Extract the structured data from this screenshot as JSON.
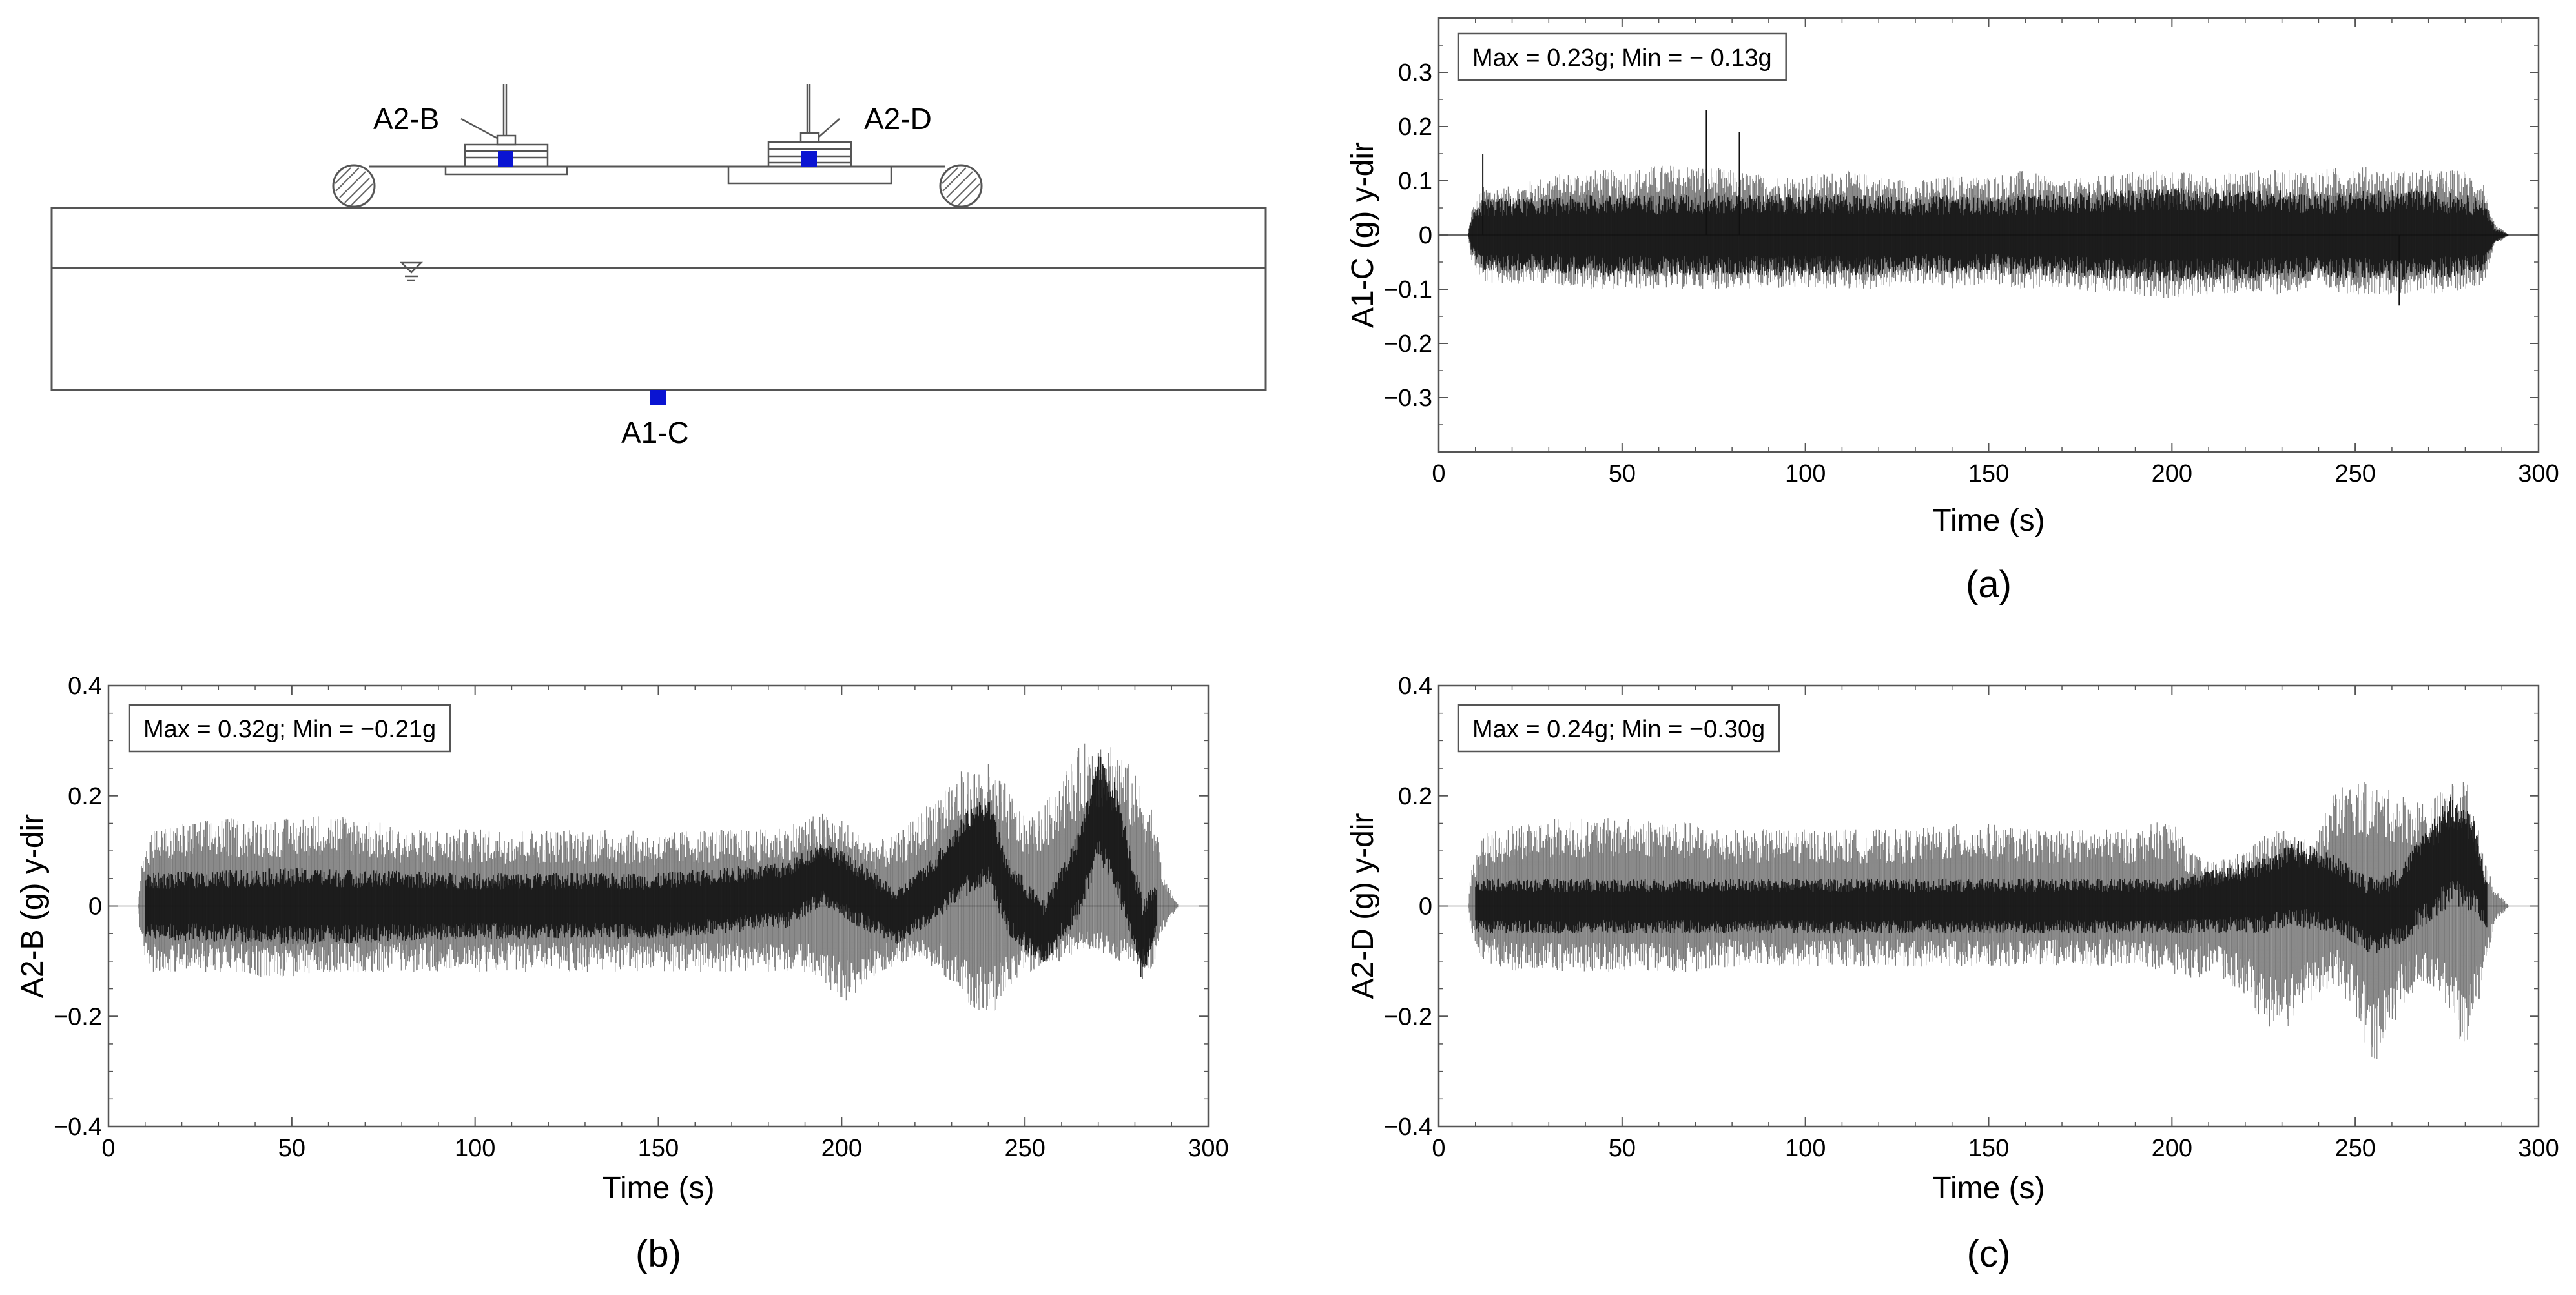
{
  "diagram": {
    "sensor_labels": [
      "A2-B",
      "A2-D",
      "A1-C"
    ],
    "sensor_color": "#0a14d2",
    "line_color": "#555555"
  },
  "chart_data": [
    {
      "type": "line",
      "panel_label": "(a)",
      "annotation": "Max = 0.23g; Min = − 0.13g",
      "max": 0.23,
      "min": -0.13,
      "xlabel": "Time (s)",
      "ylabel": "A1-C (g) y-dir",
      "xlim": [
        0,
        300
      ],
      "ylim": [
        -0.4,
        0.4
      ],
      "xticks": [
        0,
        50,
        100,
        150,
        200,
        250,
        300
      ],
      "xtick_labels": [
        "0",
        "50",
        "100",
        "150",
        "200",
        "250",
        "300"
      ],
      "yticks": [
        -0.3,
        -0.2,
        -0.1,
        0,
        0.1,
        0.2,
        0.3
      ],
      "ytick_labels": [
        "−0.3",
        "−0.2",
        "−0.1",
        "0",
        "0.1",
        "0.2",
        "0.3"
      ],
      "grid": false,
      "line_color": "#111111",
      "envelope": {
        "x": [
          0,
          8,
          9,
          12,
          20,
          30,
          40,
          50,
          60,
          70,
          80,
          90,
          100,
          110,
          120,
          130,
          140,
          150,
          160,
          170,
          180,
          190,
          200,
          210,
          220,
          230,
          240,
          250,
          260,
          270,
          280,
          285,
          288,
          292,
          300
        ],
        "upper": [
          0,
          0,
          0.05,
          0.09,
          0.09,
          0.11,
          0.12,
          0.12,
          0.13,
          0.13,
          0.12,
          0.11,
          0.11,
          0.12,
          0.11,
          0.1,
          0.11,
          0.11,
          0.12,
          0.1,
          0.11,
          0.12,
          0.12,
          0.11,
          0.12,
          0.12,
          0.12,
          0.13,
          0.12,
          0.12,
          0.12,
          0.1,
          0.02,
          0,
          0
        ],
        "lower": [
          0,
          0,
          -0.05,
          -0.09,
          -0.09,
          -0.09,
          -0.1,
          -0.1,
          -0.1,
          -0.1,
          -0.1,
          -0.1,
          -0.1,
          -0.1,
          -0.1,
          -0.09,
          -0.1,
          -0.09,
          -0.1,
          -0.1,
          -0.11,
          -0.11,
          -0.12,
          -0.11,
          -0.11,
          -0.11,
          -0.1,
          -0.11,
          -0.11,
          -0.11,
          -0.1,
          -0.09,
          -0.02,
          0,
          0
        ]
      },
      "spikes": [
        {
          "x": 12,
          "y": 0.15
        },
        {
          "x": 73,
          "y": 0.23
        },
        {
          "x": 82,
          "y": 0.19
        },
        {
          "x": 262,
          "y": -0.13
        }
      ]
    },
    {
      "type": "line",
      "panel_label": "(b)",
      "annotation": "Max = 0.32g; Min = −0.21g",
      "max": 0.32,
      "min": -0.21,
      "xlabel": "Time (s)",
      "ylabel": "A2-B (g) y-dir",
      "xlim": [
        0,
        300
      ],
      "ylim": [
        -0.4,
        0.4
      ],
      "xticks": [
        0,
        50,
        100,
        150,
        200,
        250,
        300
      ],
      "xtick_labels": [
        "0",
        "50",
        "100",
        "150",
        "200",
        "250",
        "300"
      ],
      "yticks": [
        -0.4,
        -0.2,
        0,
        0.2,
        0.4
      ],
      "ytick_labels": [
        "−0.4",
        "−0.2",
        "0",
        "0.2",
        "0.4"
      ],
      "grid": false,
      "line_color": "#111111",
      "envelope": {
        "x": [
          0,
          8,
          9,
          12,
          20,
          30,
          40,
          50,
          60,
          70,
          80,
          90,
          100,
          110,
          120,
          130,
          140,
          150,
          160,
          170,
          180,
          190,
          195,
          200,
          205,
          210,
          215,
          220,
          225,
          230,
          235,
          240,
          245,
          250,
          255,
          260,
          265,
          270,
          275,
          280,
          285,
          288,
          292,
          300
        ],
        "upper": [
          0,
          0,
          0.08,
          0.14,
          0.15,
          0.16,
          0.16,
          0.16,
          0.17,
          0.16,
          0.14,
          0.14,
          0.14,
          0.14,
          0.14,
          0.14,
          0.14,
          0.13,
          0.14,
          0.14,
          0.14,
          0.16,
          0.17,
          0.16,
          0.13,
          0.12,
          0.13,
          0.16,
          0.2,
          0.24,
          0.25,
          0.26,
          0.22,
          0.16,
          0.18,
          0.24,
          0.29,
          0.32,
          0.3,
          0.24,
          0.18,
          0.05,
          0,
          0
        ],
        "lower": [
          0,
          0,
          -0.08,
          -0.12,
          -0.12,
          -0.12,
          -0.13,
          -0.13,
          -0.12,
          -0.12,
          -0.12,
          -0.12,
          -0.12,
          -0.12,
          -0.12,
          -0.12,
          -0.12,
          -0.12,
          -0.12,
          -0.12,
          -0.12,
          -0.12,
          -0.14,
          -0.18,
          -0.16,
          -0.12,
          -0.11,
          -0.1,
          -0.11,
          -0.14,
          -0.18,
          -0.21,
          -0.16,
          -0.12,
          -0.12,
          -0.1,
          -0.08,
          -0.08,
          -0.1,
          -0.1,
          -0.12,
          -0.04,
          0,
          0
        ]
      },
      "inner_band": {
        "x": [
          10,
          50,
          100,
          150,
          185,
          195,
          205,
          215,
          225,
          235,
          240,
          245,
          255,
          265,
          270,
          275,
          282,
          286
        ],
        "center": [
          0.0,
          0.0,
          0.0,
          0.0,
          0.02,
          0.06,
          0.02,
          -0.02,
          0.03,
          0.1,
          0.12,
          0.02,
          -0.05,
          0.06,
          0.18,
          0.12,
          -0.06,
          0.0
        ],
        "half": [
          0.06,
          0.07,
          0.06,
          0.06,
          0.06,
          0.06,
          0.06,
          0.05,
          0.06,
          0.08,
          0.08,
          0.07,
          0.06,
          0.08,
          0.1,
          0.1,
          0.08,
          0.04
        ]
      }
    },
    {
      "type": "line",
      "panel_label": "(c)",
      "annotation": "Max = 0.24g; Min = −0.30g",
      "max": 0.24,
      "min": -0.3,
      "xlabel": "Time (s)",
      "ylabel": "A2-D (g) y-dir",
      "xlim": [
        0,
        300
      ],
      "ylim": [
        -0.4,
        0.4
      ],
      "xticks": [
        0,
        50,
        100,
        150,
        200,
        250,
        300
      ],
      "xtick_labels": [
        "0",
        "50",
        "100",
        "150",
        "200",
        "250",
        "300"
      ],
      "yticks": [
        -0.4,
        -0.2,
        0,
        0.2,
        0.4
      ],
      "ytick_labels": [
        "−0.4",
        "−0.2",
        "0",
        "0.2",
        "0.4"
      ],
      "grid": false,
      "line_color": "#111111",
      "envelope": {
        "x": [
          0,
          8,
          9,
          12,
          20,
          30,
          40,
          50,
          60,
          70,
          80,
          90,
          100,
          110,
          120,
          130,
          140,
          150,
          160,
          170,
          180,
          190,
          200,
          205,
          210,
          220,
          225,
          230,
          235,
          240,
          245,
          250,
          255,
          260,
          265,
          270,
          275,
          280,
          285,
          288,
          292,
          300
        ],
        "upper": [
          0,
          0,
          0.08,
          0.13,
          0.15,
          0.16,
          0.16,
          0.16,
          0.16,
          0.15,
          0.14,
          0.14,
          0.14,
          0.14,
          0.14,
          0.14,
          0.15,
          0.15,
          0.14,
          0.14,
          0.14,
          0.14,
          0.16,
          0.1,
          0.08,
          0.1,
          0.13,
          0.14,
          0.12,
          0.14,
          0.22,
          0.23,
          0.22,
          0.21,
          0.2,
          0.19,
          0.22,
          0.24,
          0.1,
          0.03,
          0,
          0
        ],
        "lower": [
          0,
          0,
          -0.06,
          -0.1,
          -0.12,
          -0.12,
          -0.12,
          -0.12,
          -0.12,
          -0.12,
          -0.11,
          -0.11,
          -0.11,
          -0.11,
          -0.11,
          -0.11,
          -0.11,
          -0.11,
          -0.11,
          -0.11,
          -0.11,
          -0.11,
          -0.12,
          -0.14,
          -0.12,
          -0.16,
          -0.22,
          -0.25,
          -0.2,
          -0.16,
          -0.14,
          -0.2,
          -0.3,
          -0.22,
          -0.16,
          -0.14,
          -0.18,
          -0.27,
          -0.14,
          -0.03,
          0,
          0
        ]
      },
      "inner_band": {
        "x": [
          10,
          50,
          100,
          150,
          200,
          215,
          225,
          235,
          245,
          255,
          262,
          270,
          276,
          282,
          286
        ],
        "center": [
          0.0,
          0.0,
          0.0,
          0.0,
          0.0,
          0.01,
          0.02,
          0.04,
          0.02,
          -0.02,
          0.0,
          0.06,
          0.1,
          0.08,
          0.0
        ],
        "half": [
          0.05,
          0.05,
          0.05,
          0.05,
          0.05,
          0.06,
          0.07,
          0.08,
          0.07,
          0.07,
          0.07,
          0.09,
          0.1,
          0.09,
          0.04
        ]
      }
    }
  ]
}
